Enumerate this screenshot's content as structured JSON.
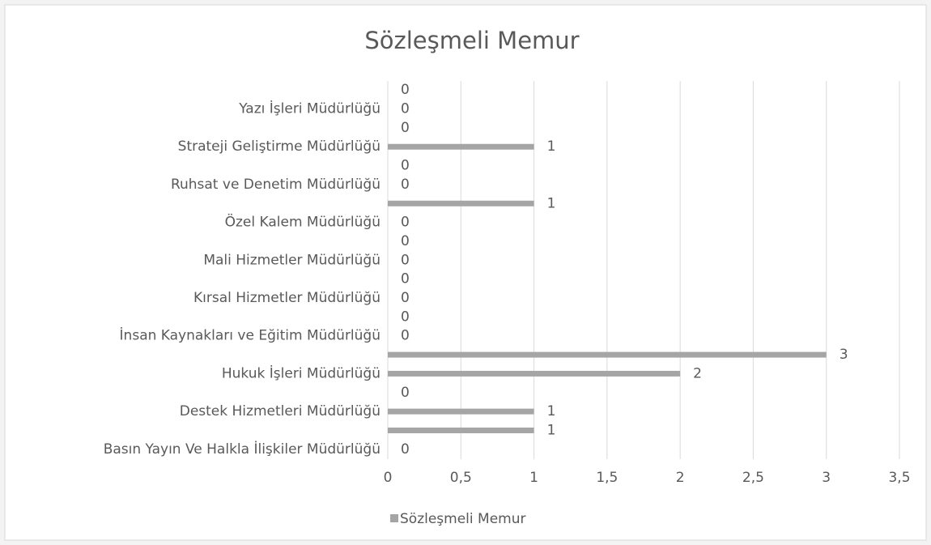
{
  "chart_data": {
    "type": "bar",
    "orientation": "horizontal",
    "title": "Sözleşmeli Memur",
    "categories": [
      "Basın Yayın Ve Halkla İlişkiler Müdürlüğü",
      "Destek Hizmetleri Müdürlüğü",
      "Hukuk İşleri Müdürlüğü",
      "İnsan Kaynakları ve Eğitim Müdürlüğü",
      "Kırsal Hizmetler Müdürlüğü",
      "Mali Hizmetler Müdürlüğü",
      "Özel Kalem Müdürlüğü",
      "Ruhsat ve Denetim Müdürlüğü",
      "Strateji Geliştirme Müdürlüğü",
      "Yazı İşleri Müdürlüğü"
    ],
    "series": [
      {
        "name": "Sözleşmeli Memur",
        "color": "#a5a5a5",
        "values": [
          0,
          1,
          2,
          0,
          0,
          0,
          0,
          0,
          1,
          0
        ]
      },
      {
        "color": "#a5a5a5",
        "values": [
          1,
          0,
          3,
          0,
          0,
          0,
          1,
          0,
          0,
          0
        ]
      }
    ],
    "xlim": [
      0,
      3.5
    ],
    "xticks": [
      0,
      {
        "value": 0.5,
        "label": "0,5"
      },
      1,
      {
        "value": 1.5,
        "label": "1,5"
      },
      2,
      {
        "value": 2.5,
        "label": "2,5"
      },
      3,
      {
        "value": 3.5,
        "label": "3,5"
      }
    ],
    "grid": true,
    "legend": "bottom",
    "data_labels": true
  }
}
